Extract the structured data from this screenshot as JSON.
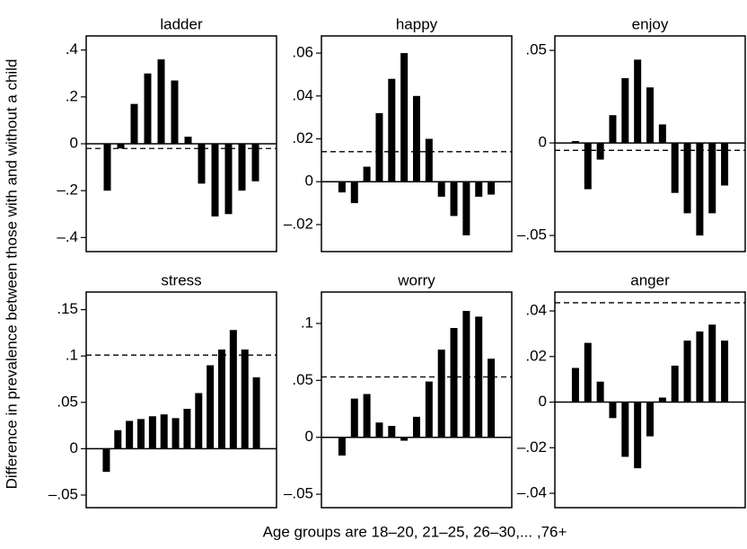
{
  "ylabel": "Difference in prevalence between those with and without a child",
  "xlabel": "Age groups are 18–20, 21–25, 26–30,... ,76+",
  "chart_data": [
    {
      "type": "bar",
      "title": "ladder",
      "color": "#000000",
      "values": [
        -0.2,
        -0.02,
        0.17,
        0.3,
        0.36,
        0.27,
        0.03,
        -0.17,
        -0.31,
        -0.3,
        -0.2,
        -0.16
      ],
      "reference_line": -0.02,
      "ylim": [
        -0.46,
        0.46
      ],
      "yticks": [
        {
          "value": -0.4,
          "label": "–.4"
        },
        {
          "value": -0.2,
          "label": "–.2"
        },
        0,
        {
          "value": 0.2,
          "label": ".2"
        },
        {
          "value": 0.4,
          "label": ".4"
        }
      ]
    },
    {
      "type": "bar",
      "title": "happy",
      "color": "#000000",
      "values": [
        -0.005,
        -0.01,
        0.007,
        0.032,
        0.048,
        0.06,
        0.04,
        0.02,
        -0.007,
        -0.016,
        -0.025,
        -0.007,
        -0.006
      ],
      "reference_line": 0.014,
      "ylim": [
        -0.0326,
        0.068
      ],
      "yticks": [
        {
          "value": -0.02,
          "label": "–.02"
        },
        0,
        {
          "value": 0.02,
          "label": ".02"
        },
        {
          "value": 0.04,
          "label": ".04"
        },
        {
          "value": 0.06,
          "label": ".06"
        }
      ]
    },
    {
      "type": "bar",
      "title": "enjoy",
      "color": "#000000",
      "values": [
        0.001,
        -0.025,
        -0.009,
        0.015,
        0.035,
        0.045,
        0.03,
        0.01,
        -0.027,
        -0.038,
        -0.05,
        -0.038,
        -0.023
      ],
      "reference_line": -0.004,
      "ylim": [
        -0.0587,
        0.0578
      ],
      "yticks": [
        {
          "value": -0.05,
          "label": "–.05"
        },
        0,
        {
          "value": 0.05,
          "label": ".05"
        }
      ]
    },
    {
      "type": "bar",
      "title": "stress",
      "color": "#000000",
      "values": [
        -0.025,
        0.02,
        0.03,
        0.032,
        0.035,
        0.037,
        0.033,
        0.043,
        0.06,
        0.09,
        0.107,
        0.128,
        0.107,
        0.077
      ],
      "reference_line": 0.101,
      "ylim": [
        -0.0636,
        0.169
      ],
      "yticks": [
        {
          "value": -0.05,
          "label": "–.05"
        },
        0,
        {
          "value": 0.05,
          "label": ".05"
        },
        {
          "value": 0.1,
          "label": ".1"
        },
        {
          "value": 0.15,
          "label": ".15"
        }
      ]
    },
    {
      "type": "bar",
      "title": "worry",
      "color": "#000000",
      "values": [
        -0.016,
        0.034,
        0.038,
        0.013,
        0.01,
        -0.003,
        0.018,
        0.049,
        0.077,
        0.096,
        0.111,
        0.106,
        0.069
      ],
      "reference_line": 0.053,
      "ylim": [
        -0.0618,
        0.1276
      ],
      "yticks": [
        {
          "value": -0.05,
          "label": "–.05"
        },
        0,
        {
          "value": 0.05,
          "label": ".05"
        },
        {
          "value": 0.1,
          "label": ".1"
        }
      ]
    },
    {
      "type": "bar",
      "title": "anger",
      "color": "#000000",
      "values": [
        0.015,
        0.026,
        0.009,
        -0.007,
        -0.024,
        -0.029,
        -0.015,
        0.002,
        0.016,
        0.027,
        0.031,
        0.034,
        0.027
      ],
      "reference_line": 0.0436,
      "ylim": [
        -0.0463,
        0.0483
      ],
      "yticks": [
        {
          "value": -0.04,
          "label": "–.04"
        },
        {
          "value": -0.02,
          "label": "–.02"
        },
        0,
        {
          "value": 0.02,
          "label": ".02"
        },
        {
          "value": 0.04,
          "label": ".04"
        }
      ]
    }
  ]
}
